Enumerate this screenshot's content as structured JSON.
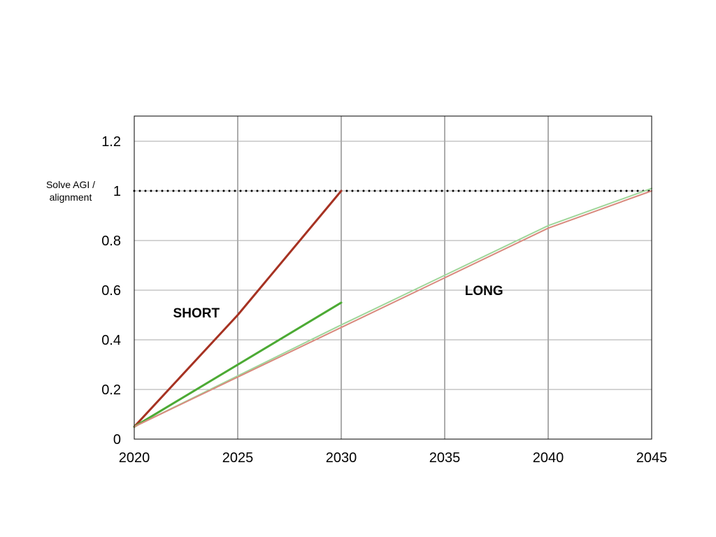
{
  "chart_data": {
    "type": "line",
    "title": "",
    "xlabel": "",
    "ylabel": "",
    "xlim": [
      2020,
      2045
    ],
    "ylim": [
      0,
      1.3
    ],
    "x_ticks": [
      2020,
      2025,
      2030,
      2035,
      2040,
      2045
    ],
    "y_ticks": [
      0,
      0.2,
      0.4,
      0.6,
      0.8,
      1,
      1.2
    ],
    "x_tick_labels": [
      "2020",
      "2025",
      "2030",
      "2035",
      "2040",
      "2045"
    ],
    "y_tick_labels": [
      "0",
      "0.2",
      "0.4",
      "0.6",
      "0.8",
      "1",
      "1.2"
    ],
    "grid": true,
    "legend": "none",
    "reference_line": {
      "y": 1,
      "style": "dotted",
      "color": "#000000",
      "label_lines": [
        "Solve AGI /",
        "alignment"
      ]
    },
    "series": [
      {
        "color": "#a63222",
        "width": 3,
        "x": [
          2020,
          2025,
          2030
        ],
        "y": [
          0.05,
          0.5,
          1.0
        ]
      },
      {
        "color": "#4caa34",
        "width": 3,
        "x": [
          2020,
          2030
        ],
        "y": [
          0.05,
          0.55
        ]
      },
      {
        "color": "#9fd69a",
        "width": 2,
        "x": [
          2020,
          2030,
          2040,
          2045
        ],
        "y": [
          0.05,
          0.46,
          0.86,
          1.01
        ]
      },
      {
        "color": "#d98a7e",
        "width": 2,
        "x": [
          2020,
          2030,
          2040,
          2045
        ],
        "y": [
          0.05,
          0.45,
          0.85,
          1.0
        ]
      }
    ],
    "annotations": [
      {
        "text": "SHORT",
        "x": 2023.0,
        "y": 0.49
      },
      {
        "text": "LONG",
        "x": 2036.9,
        "y": 0.58
      }
    ]
  }
}
